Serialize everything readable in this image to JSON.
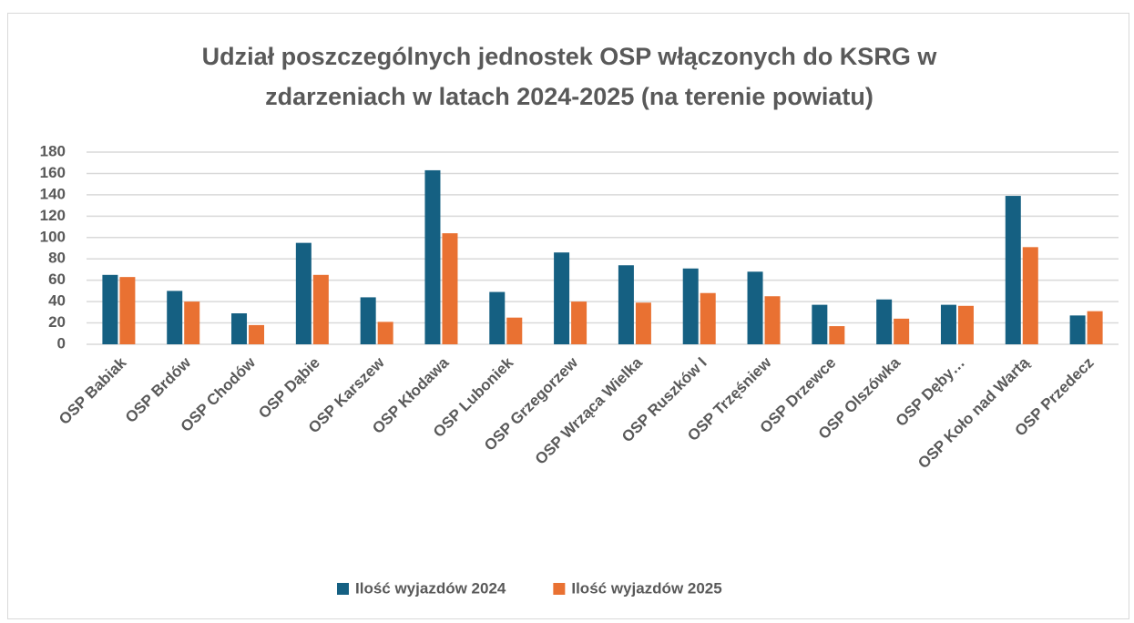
{
  "chart_data": {
    "type": "bar",
    "title": "Udział poszczególnych jednostek OSP włączonych do KSRG w zdarzeniach w latach 2024-2025 (na terenie powiatu)",
    "categories": [
      "OSP Babiak",
      "OSP Brdów",
      "OSP Chodów",
      "OSP Dąbie",
      "OSP Karszew",
      "OSP Kłodawa",
      "OSP Luboniek",
      "OSP Grzegorzew",
      "OSP Wrząca Wielka",
      "OSP Ruszków I",
      "OSP Trzęśniew",
      "OSP Drzewce",
      "OSP Olszówka",
      "OSP Dęby…",
      "OSP Koło nad Wartą",
      "OSP Przedecz"
    ],
    "series": [
      {
        "name": "Ilość wyjazdów 2024",
        "color": "#156082",
        "values": [
          65,
          50,
          29,
          95,
          44,
          163,
          49,
          86,
          74,
          71,
          68,
          37,
          42,
          37,
          139,
          27
        ]
      },
      {
        "name": "Ilość wyjazdów 2025",
        "color": "#e97132",
        "values": [
          63,
          40,
          18,
          65,
          21,
          104,
          25,
          40,
          39,
          48,
          45,
          17,
          24,
          36,
          91,
          31
        ]
      }
    ],
    "ylim": [
      0,
      180
    ],
    "yticks": [
      0,
      20,
      40,
      60,
      80,
      100,
      120,
      140,
      160,
      180
    ],
    "grid": true,
    "legend": "bottom"
  }
}
